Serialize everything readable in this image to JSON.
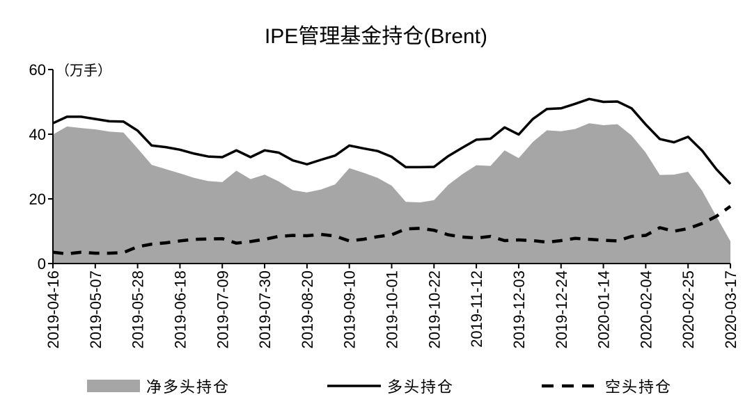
{
  "chart_data": {
    "type": "area",
    "title": "IPE管理基金持仓(Brent)",
    "unit_label": "（万手）",
    "ylim": [
      0,
      60
    ],
    "y_ticks": [
      0,
      20,
      40,
      60
    ],
    "x_tick_labels": [
      "2019-04-16",
      "2019-05-07",
      "2019-05-28",
      "2019-06-18",
      "2019-07-09",
      "2019-07-30",
      "2019-08-20",
      "2019-09-10",
      "2019-10-01",
      "2019-10-22",
      "2019-11-12",
      "2019-12-03",
      "2019-12-24",
      "2020-01-14",
      "2020-02-04",
      "2020-02-25",
      "2020-03-17"
    ],
    "x_start": "2019-04-16",
    "x_end": "2020-03-17",
    "legend_position": "bottom",
    "series": [
      {
        "name": "净多头持仓",
        "style": "area",
        "color": "#a6a6a6",
        "values": [
          39.9,
          42.4,
          41.9,
          41.5,
          40.8,
          40.5,
          35.6,
          30.5,
          29.2,
          27.9,
          26.5,
          25.5,
          25.2,
          28.7,
          26.1,
          27.5,
          25.4,
          22.7,
          22.0,
          22.9,
          24.5,
          29.5,
          28.1,
          26.5,
          24.1,
          19.1,
          18.9,
          19.6,
          24.3,
          27.6,
          30.4,
          30.2,
          35.0,
          32.6,
          37.6,
          41.2,
          40.9,
          41.6,
          43.4,
          42.8,
          43.1,
          39.6,
          34.3,
          27.4,
          27.5,
          28.4,
          22.5,
          14.6,
          6.9
        ]
      },
      {
        "name": "多头持仓",
        "style": "line",
        "color": "#000000",
        "values": [
          43.4,
          45.4,
          45.4,
          44.7,
          44.0,
          43.9,
          41.1,
          36.5,
          36.0,
          35.2,
          34.0,
          33.1,
          32.9,
          35.0,
          32.9,
          35.0,
          34.3,
          31.9,
          30.7,
          32.1,
          33.4,
          36.5,
          35.6,
          34.8,
          33.0,
          29.8,
          29.8,
          29.9,
          33.2,
          35.8,
          38.3,
          38.6,
          42.1,
          39.9,
          44.7,
          47.8,
          48.0,
          49.4,
          50.9,
          50.0,
          50.1,
          48.0,
          43.0,
          38.5,
          37.5,
          39.2,
          34.9,
          29.2,
          24.6
        ]
      },
      {
        "name": "空头持仓",
        "style": "dashed-line",
        "color": "#000000",
        "values": [
          3.5,
          3.0,
          3.5,
          3.2,
          3.2,
          3.4,
          5.2,
          6.0,
          6.4,
          7.0,
          7.5,
          7.6,
          7.7,
          6.3,
          6.8,
          7.5,
          8.4,
          8.7,
          8.6,
          9.0,
          8.5,
          7.0,
          7.5,
          8.3,
          8.9,
          10.7,
          10.9,
          10.3,
          8.9,
          8.2,
          7.9,
          8.4,
          7.1,
          7.3,
          7.1,
          6.6,
          7.1,
          7.8,
          7.5,
          7.2,
          7.0,
          8.4,
          8.7,
          11.1,
          10.0,
          10.8,
          12.4,
          14.6,
          17.7
        ]
      }
    ]
  }
}
